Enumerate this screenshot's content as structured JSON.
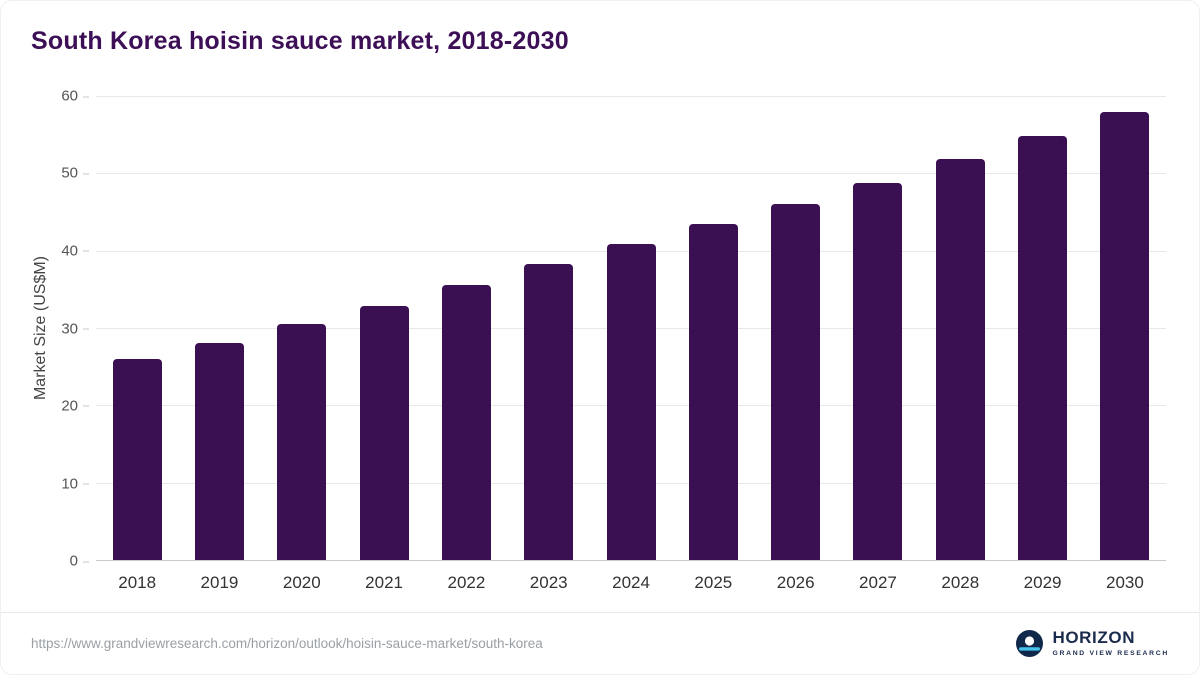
{
  "title": "South Korea hoisin sauce market, 2018-2030",
  "chart_data": {
    "type": "bar",
    "title": "South Korea hoisin sauce market, 2018-2030",
    "categories": [
      "2018",
      "2019",
      "2020",
      "2021",
      "2022",
      "2023",
      "2024",
      "2025",
      "2026",
      "2027",
      "2028",
      "2029",
      "2030"
    ],
    "values": [
      26.0,
      28.1,
      30.5,
      32.9,
      35.6,
      38.3,
      40.9,
      43.4,
      46.1,
      48.8,
      51.8,
      54.8,
      57.9
    ],
    "xlabel": "",
    "ylabel": "Market Size (US$M)",
    "ylim": [
      0,
      60
    ],
    "yticks": [
      0,
      10,
      20,
      30,
      40,
      50,
      60
    ],
    "grid": true,
    "legend": "none",
    "bar_color": "#3b1053"
  },
  "colors": {
    "title": "#3c0f56",
    "bar": "#3b1053",
    "grid": "#e8e8e8",
    "axis_text": "#555555",
    "url_text": "#9aa0a6",
    "brand_navy": "#1b2b4d",
    "brand_accent": "#45c2e9"
  },
  "footer": {
    "source_url": "https://www.grandviewresearch.com/horizon/outlook/hoisin-sauce-market/south-korea",
    "brand": "HORIZON",
    "brand_sub": "GRAND VIEW RESEARCH"
  }
}
